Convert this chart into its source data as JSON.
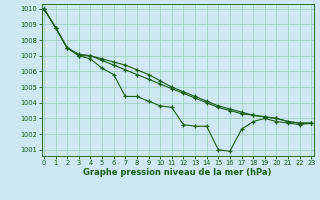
{
  "xlabel": "Graphe pression niveau de la mer (hPa)",
  "background_color": "#cde8f0",
  "plot_bg_color": "#cde8f0",
  "grid_color": "#99ccbb",
  "line_color": "#1a5c1a",
  "xlim": [
    -0.2,
    23.2
  ],
  "ylim": [
    1000.6,
    1010.3
  ],
  "xticks": [
    0,
    1,
    2,
    3,
    4,
    5,
    6,
    7,
    8,
    9,
    10,
    11,
    12,
    13,
    14,
    15,
    16,
    17,
    18,
    19,
    20,
    21,
    22,
    23
  ],
  "yticks": [
    1001,
    1002,
    1003,
    1004,
    1005,
    1006,
    1007,
    1008,
    1009,
    1010
  ],
  "series1_x": [
    0,
    1,
    2,
    3,
    4,
    5,
    6,
    7,
    8,
    9,
    10,
    11,
    12,
    13,
    14,
    15,
    16,
    17,
    18,
    19,
    20,
    21,
    22,
    23
  ],
  "series1_y": [
    1010.0,
    1008.8,
    1007.5,
    1007.0,
    1006.8,
    1006.2,
    1005.8,
    1004.4,
    1004.4,
    1004.1,
    1003.8,
    1003.7,
    1002.6,
    1002.5,
    1002.5,
    1001.0,
    1000.9,
    1002.3,
    1002.8,
    1003.0,
    1002.8,
    1002.7,
    1002.6,
    1002.7
  ],
  "series2_x": [
    0,
    1,
    2,
    3,
    4,
    5,
    6,
    7,
    8,
    9,
    10,
    11,
    12,
    13,
    14,
    15,
    16,
    17,
    18,
    19,
    20,
    21,
    22,
    23
  ],
  "series2_y": [
    1010.0,
    1008.8,
    1007.5,
    1007.1,
    1007.0,
    1006.7,
    1006.4,
    1006.1,
    1005.8,
    1005.5,
    1005.2,
    1004.9,
    1004.6,
    1004.3,
    1004.0,
    1003.7,
    1003.5,
    1003.3,
    1003.2,
    1003.1,
    1003.0,
    1002.8,
    1002.7,
    1002.7
  ],
  "series3_x": [
    0,
    1,
    2,
    3,
    4,
    5,
    6,
    7,
    8,
    9,
    10,
    11,
    12,
    13,
    14,
    15,
    16,
    17,
    18,
    19,
    20,
    21,
    22,
    23
  ],
  "series3_y": [
    1010.0,
    1008.8,
    1007.5,
    1007.0,
    1007.0,
    1006.8,
    1006.6,
    1006.4,
    1006.1,
    1005.8,
    1005.4,
    1005.0,
    1004.7,
    1004.4,
    1004.1,
    1003.8,
    1003.6,
    1003.4,
    1003.2,
    1003.1,
    1003.0,
    1002.8,
    1002.7,
    1002.7
  ]
}
